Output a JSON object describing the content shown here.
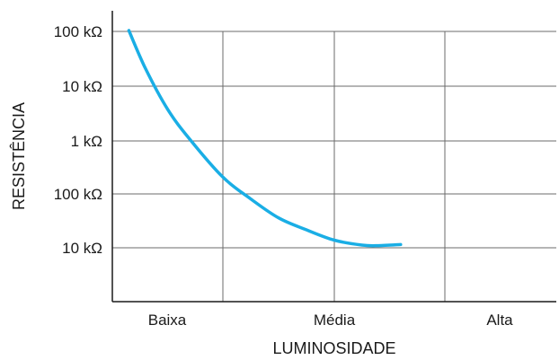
{
  "chart_data": {
    "type": "line",
    "xlabel": "LUMINOSIDADE",
    "ylabel": "RESISTÊNCIA",
    "categories": [
      "Baixa",
      "Média",
      "Alta"
    ],
    "y_ticks": [
      "100 kΩ",
      "10 kΩ",
      "1 kΩ",
      "100 kΩ",
      "10 kΩ"
    ],
    "y_scale": "log",
    "grid": true,
    "line_color": "#1aaee5",
    "series": [
      {
        "x": [
          0.15,
          0.3,
          0.5,
          0.7,
          1.0,
          1.25,
          1.5,
          1.75,
          2.0,
          2.25,
          2.4,
          2.6
        ],
        "y": [
          4,
          3.3,
          2.55,
          2.0,
          1.3,
          0.9,
          0.55,
          0.33,
          0.14,
          0.05,
          0.04,
          0.06
        ]
      }
    ]
  }
}
